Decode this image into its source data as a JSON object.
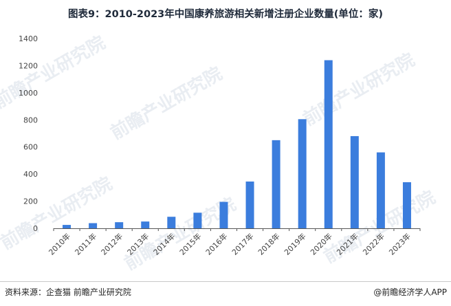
{
  "title": "图表9：2010-2023年中国康养旅游相关新增注册企业数量(单位：家)",
  "source": "资料来源：企查猫 前瞻产业研究院",
  "brand": "@前瞻经济学人APP",
  "watermark": "前瞻产业研究院",
  "colors": {
    "bar": "#3b7ddd",
    "axis": "#555555",
    "text": "#444444"
  },
  "chart_data": {
    "type": "bar",
    "categories": [
      "2010年",
      "2011年",
      "2012年",
      "2013年",
      "2014年",
      "2015年",
      "2016年",
      "2017年",
      "2018年",
      "2019年",
      "2020年",
      "2021年",
      "2022年",
      "2023年"
    ],
    "values": [
      25,
      38,
      45,
      50,
      85,
      115,
      195,
      345,
      650,
      805,
      1240,
      680,
      560,
      340
    ],
    "ylim": [
      0,
      1400
    ],
    "yticks": [
      0,
      200,
      400,
      600,
      800,
      1000,
      1200,
      1400
    ],
    "grid": false,
    "xlabel": "",
    "ylabel": ""
  }
}
